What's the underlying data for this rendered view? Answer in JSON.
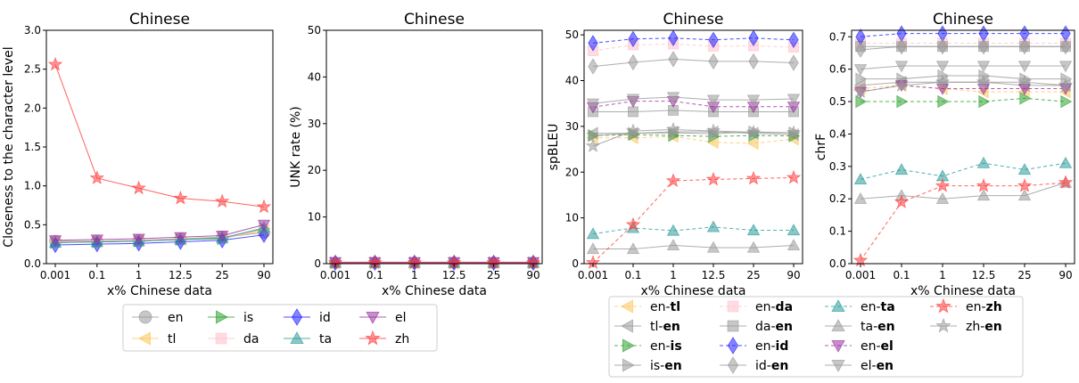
{
  "charts": [
    {
      "type": "line",
      "title": "Chinese",
      "xlabel": "x% Chinese data",
      "ylabel": "Closeness to the character level",
      "ylim": [
        0,
        3.0
      ],
      "yticks": [
        0,
        0.5,
        1.0,
        1.5,
        2.0,
        2.5,
        3.0
      ],
      "ytick_labels": [
        "0.0",
        "0.5",
        "1.0",
        "1.5",
        "2.0",
        "2.5",
        "3.0"
      ],
      "series": [
        {
          "name": "en",
          "values": [
            0.29,
            0.29,
            0.3,
            0.32,
            0.34,
            0.4
          ]
        },
        {
          "name": "tl",
          "values": [
            0.28,
            0.28,
            0.29,
            0.31,
            0.33,
            0.42
          ]
        },
        {
          "name": "is",
          "values": [
            0.27,
            0.28,
            0.29,
            0.31,
            0.32,
            0.45
          ]
        },
        {
          "name": "da",
          "values": [
            0.28,
            0.29,
            0.3,
            0.32,
            0.33,
            0.44
          ]
        },
        {
          "name": "id",
          "values": [
            0.24,
            0.25,
            0.26,
            0.28,
            0.3,
            0.37
          ]
        },
        {
          "name": "ta",
          "values": [
            0.27,
            0.28,
            0.29,
            0.31,
            0.33,
            0.46
          ]
        },
        {
          "name": "el",
          "values": [
            0.3,
            0.31,
            0.32,
            0.34,
            0.36,
            0.5
          ]
        },
        {
          "name": "zh",
          "values": [
            2.56,
            1.1,
            0.97,
            0.84,
            0.8,
            0.73
          ]
        }
      ]
    },
    {
      "type": "line",
      "title": "Chinese",
      "xlabel": "x% Chinese data",
      "ylabel": "UNK rate (%)",
      "ylim": [
        0,
        50
      ],
      "yticks": [
        0,
        10,
        20,
        30,
        40,
        50
      ],
      "ytick_labels": [
        "0",
        "10",
        "20",
        "30",
        "40",
        "50"
      ],
      "series": [
        {
          "name": "en",
          "values": [
            0.2,
            0.2,
            0.2,
            0.2,
            0.2,
            0.2
          ]
        },
        {
          "name": "tl",
          "values": [
            0.2,
            0.2,
            0.2,
            0.2,
            0.2,
            0.2
          ]
        },
        {
          "name": "is",
          "values": [
            0.2,
            0.2,
            0.2,
            0.2,
            0.2,
            0.2
          ]
        },
        {
          "name": "da",
          "values": [
            0.2,
            0.2,
            0.2,
            0.2,
            0.2,
            0.2
          ]
        },
        {
          "name": "id",
          "values": [
            0.2,
            0.2,
            0.2,
            0.2,
            0.2,
            0.2
          ]
        },
        {
          "name": "ta",
          "values": [
            0.2,
            0.2,
            0.2,
            0.2,
            0.2,
            0.2
          ]
        },
        {
          "name": "el",
          "values": [
            0.3,
            0.3,
            0.3,
            0.3,
            0.3,
            0.3
          ]
        },
        {
          "name": "zh",
          "values": [
            0.2,
            0.2,
            0.2,
            0.2,
            0.2,
            0.2
          ]
        }
      ]
    },
    {
      "type": "line",
      "title": "Chinese",
      "xlabel": "x% Chinese data",
      "ylabel": "spBLEU",
      "ylim": [
        0,
        51
      ],
      "yticks": [
        0,
        10,
        20,
        30,
        40,
        50
      ],
      "ytick_labels": [
        "0",
        "10",
        "20",
        "30",
        "40",
        "50"
      ],
      "series": [
        {
          "name": "en-tl",
          "values": [
            27.5,
            27.5,
            27.8,
            26.5,
            26.3,
            27.2
          ]
        },
        {
          "name": "tl-en",
          "values": [
            28.5,
            28.5,
            28.8,
            28.8,
            28.5,
            28.2
          ]
        },
        {
          "name": "en-is",
          "values": [
            28.0,
            28.2,
            28.0,
            27.8,
            28.0,
            27.9
          ]
        },
        {
          "name": "is-en",
          "values": [
            28.0,
            28.5,
            28.6,
            28.4,
            28.8,
            28.6
          ]
        },
        {
          "name": "en-da",
          "values": [
            46.5,
            47.8,
            48.0,
            47.5,
            47.6,
            47.3
          ]
        },
        {
          "name": "da-en",
          "values": [
            33.2,
            33.2,
            33.5,
            33.2,
            33.2,
            33.2
          ]
        },
        {
          "name": "en-id",
          "values": [
            48.2,
            49.1,
            49.3,
            48.9,
            49.3,
            48.9
          ]
        },
        {
          "name": "id-en",
          "values": [
            43.1,
            44.0,
            44.7,
            44.2,
            44.2,
            43.9
          ]
        },
        {
          "name": "en-ta",
          "values": [
            6.5,
            7.8,
            7.2,
            8.0,
            7.3,
            7.3
          ]
        },
        {
          "name": "ta-en",
          "values": [
            3.2,
            3.2,
            4.0,
            3.5,
            3.5,
            4.0
          ]
        },
        {
          "name": "en-el",
          "values": [
            34.2,
            35.5,
            35.5,
            34.3,
            34.3,
            34.3
          ]
        },
        {
          "name": "el-en",
          "values": [
            35.0,
            36.0,
            36.4,
            35.8,
            35.8,
            36.0
          ]
        },
        {
          "name": "en-zh",
          "values": [
            0.2,
            8.5,
            18.1,
            18.4,
            18.6,
            18.8
          ]
        },
        {
          "name": "zh-en",
          "values": [
            25.7,
            29.0,
            29.3,
            29.0,
            28.7,
            28.6
          ]
        }
      ]
    },
    {
      "type": "line",
      "title": "Chinese",
      "xlabel": "x% Chinese data",
      "ylabel": "chrF",
      "ylim": [
        0,
        0.72
      ],
      "yticks": [
        0,
        0.1,
        0.2,
        0.3,
        0.4,
        0.5,
        0.6,
        0.7
      ],
      "ytick_labels": [
        "0.0",
        "0.1",
        "0.2",
        "0.3",
        "0.4",
        "0.5",
        "0.6",
        "0.7"
      ],
      "series": [
        {
          "name": "en-tl",
          "values": [
            0.54,
            0.55,
            0.54,
            0.53,
            0.53,
            0.53
          ]
        },
        {
          "name": "tl-en",
          "values": [
            0.55,
            0.56,
            0.56,
            0.56,
            0.55,
            0.55
          ]
        },
        {
          "name": "en-is",
          "values": [
            0.5,
            0.5,
            0.5,
            0.5,
            0.51,
            0.5
          ]
        },
        {
          "name": "is-en",
          "values": [
            0.57,
            0.57,
            0.58,
            0.58,
            0.57,
            0.57
          ]
        },
        {
          "name": "en-da",
          "values": [
            0.68,
            0.68,
            0.68,
            0.68,
            0.68,
            0.68
          ]
        },
        {
          "name": "da-en",
          "values": [
            0.67,
            0.67,
            0.67,
            0.67,
            0.67,
            0.67
          ]
        },
        {
          "name": "en-id",
          "values": [
            0.7,
            0.71,
            0.71,
            0.71,
            0.71,
            0.71
          ]
        },
        {
          "name": "id-en",
          "values": [
            0.66,
            0.67,
            0.67,
            0.67,
            0.67,
            0.67
          ]
        },
        {
          "name": "en-ta",
          "values": [
            0.26,
            0.29,
            0.27,
            0.31,
            0.29,
            0.31
          ]
        },
        {
          "name": "ta-en",
          "values": [
            0.2,
            0.21,
            0.2,
            0.21,
            0.21,
            0.25
          ]
        },
        {
          "name": "en-el",
          "values": [
            0.53,
            0.55,
            0.54,
            0.54,
            0.54,
            0.54
          ]
        },
        {
          "name": "el-en",
          "values": [
            0.6,
            0.61,
            0.61,
            0.61,
            0.61,
            0.61
          ]
        },
        {
          "name": "en-zh",
          "values": [
            0.01,
            0.19,
            0.24,
            0.24,
            0.24,
            0.25
          ]
        },
        {
          "name": "zh-en",
          "values": [
            0.53,
            0.55,
            0.56,
            0.56,
            0.56,
            0.55
          ]
        }
      ]
    }
  ],
  "shared": {
    "x_tick_labels": [
      "0.001",
      "0.1",
      "1",
      "12.5",
      "25",
      "90"
    ]
  },
  "styles": {
    "en": {
      "color": "#999999",
      "marker": "circle"
    },
    "tl": {
      "color": "#fcc55a",
      "marker": "tri-left"
    },
    "is": {
      "color": "#2ca02c",
      "marker": "tri-right"
    },
    "da": {
      "color": "#ffc0cb",
      "marker": "square"
    },
    "id": {
      "color": "#1f1fff",
      "marker": "diamond"
    },
    "ta": {
      "color": "#2a9a9a",
      "marker": "tri-up"
    },
    "el": {
      "color": "#9b30a0",
      "marker": "tri-down"
    },
    "zh": {
      "color": "#ff3b3b",
      "marker": "star"
    },
    "en-tl": {
      "color": "#fcc55a",
      "marker": "tri-left",
      "dash": true
    },
    "tl-en": {
      "color": "#999999",
      "marker": "tri-left"
    },
    "en-is": {
      "color": "#2ca02c",
      "marker": "tri-right",
      "dash": true
    },
    "is-en": {
      "color": "#999999",
      "marker": "tri-right"
    },
    "en-da": {
      "color": "#ffc0cb",
      "marker": "square",
      "dash": true
    },
    "da-en": {
      "color": "#999999",
      "marker": "square"
    },
    "en-id": {
      "color": "#1f1fff",
      "marker": "diamond",
      "dash": true
    },
    "id-en": {
      "color": "#999999",
      "marker": "diamond"
    },
    "en-ta": {
      "color": "#2a9a9a",
      "marker": "tri-up",
      "dash": true
    },
    "ta-en": {
      "color": "#999999",
      "marker": "tri-up"
    },
    "en-el": {
      "color": "#9b30a0",
      "marker": "tri-down",
      "dash": true
    },
    "el-en": {
      "color": "#999999",
      "marker": "tri-down"
    },
    "en-zh": {
      "color": "#ff3b3b",
      "marker": "star",
      "dash": true
    },
    "zh-en": {
      "color": "#999999",
      "marker": "star"
    }
  },
  "legend1": {
    "items": [
      {
        "key": "en",
        "label": "en"
      },
      {
        "key": "tl",
        "label": "tl"
      },
      {
        "key": "is",
        "label": "is"
      },
      {
        "key": "da",
        "label": "da"
      },
      {
        "key": "id",
        "label": "id"
      },
      {
        "key": "ta",
        "label": "ta"
      },
      {
        "key": "el",
        "label": "el"
      },
      {
        "key": "zh",
        "label": "zh"
      }
    ]
  },
  "legend2": {
    "items": [
      {
        "key": "en-tl",
        "pre": "en-",
        "bold": "tl"
      },
      {
        "key": "tl-en",
        "pre": "tl-",
        "bold": "en"
      },
      {
        "key": "en-is",
        "pre": "en-",
        "bold": "is"
      },
      {
        "key": "is-en",
        "pre": "is-",
        "bold": "en"
      },
      {
        "key": "en-da",
        "pre": "en-",
        "bold": "da"
      },
      {
        "key": "da-en",
        "pre": "da-",
        "bold": "en"
      },
      {
        "key": "en-id",
        "pre": "en-",
        "bold": "id"
      },
      {
        "key": "id-en",
        "pre": "id-",
        "bold": "en"
      },
      {
        "key": "en-ta",
        "pre": "en-",
        "bold": "ta"
      },
      {
        "key": "ta-en",
        "pre": "ta-",
        "bold": "en"
      },
      {
        "key": "en-el",
        "pre": "en-",
        "bold": "el"
      },
      {
        "key": "el-en",
        "pre": "el-",
        "bold": "en"
      },
      {
        "key": "en-zh",
        "pre": "en-",
        "bold": "zh"
      },
      {
        "key": "zh-en",
        "pre": "zh-",
        "bold": "en"
      }
    ]
  }
}
